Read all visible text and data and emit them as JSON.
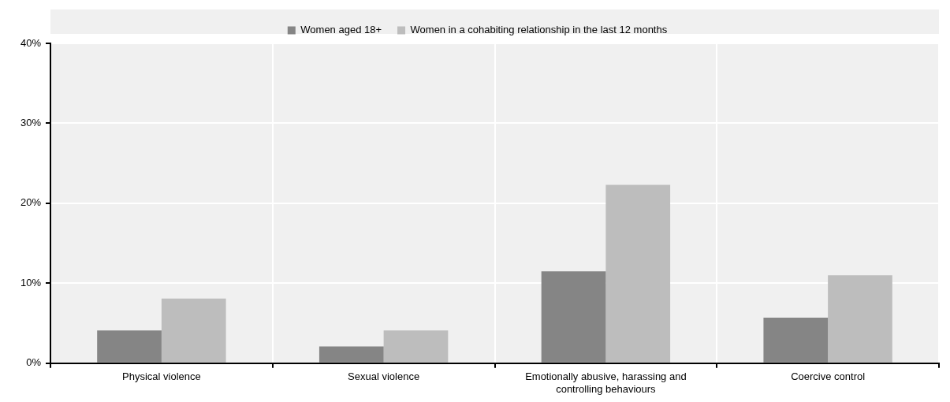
{
  "chart_data": {
    "type": "bar",
    "categories": [
      "Physical violence",
      "Sexual violence",
      "Emotionally abusive, harassing and controlling behaviours",
      "Coercive control"
    ],
    "series": [
      {
        "name": "Women aged 18+",
        "color": "#858585",
        "values": [
          4.1,
          2.1,
          11.5,
          5.7
        ]
      },
      {
        "name": "Women in a cohabiting relationship in the last 12 months",
        "color": "#bdbdbd",
        "values": [
          8.1,
          4.1,
          22.3,
          11.0
        ]
      }
    ],
    "ylim": [
      0,
      40
    ],
    "yticks": [
      {
        "value": 0,
        "label": "0%"
      },
      {
        "value": 10,
        "label": "10%"
      },
      {
        "value": 20,
        "label": "20%"
      },
      {
        "value": 30,
        "label": "30%"
      },
      {
        "value": 40,
        "label": "40%"
      }
    ],
    "grid": true,
    "legend": "top"
  }
}
